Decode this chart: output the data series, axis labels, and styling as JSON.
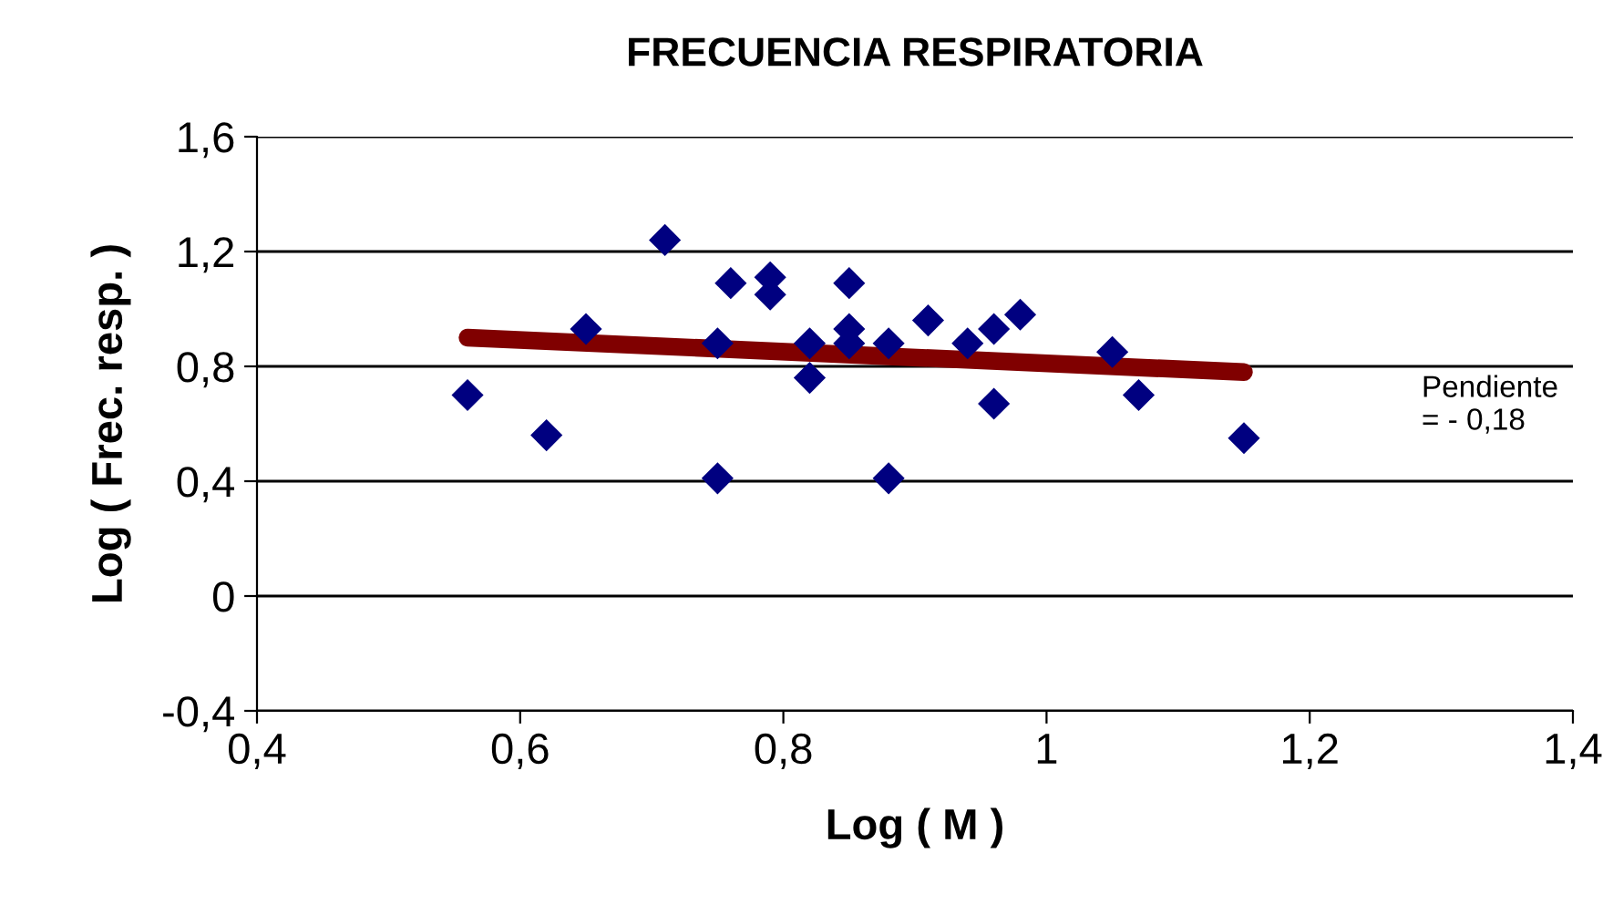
{
  "chart_data": {
    "type": "scatter",
    "title": "FRECUENCIA RESPIRATORIA",
    "xlabel": "Log ( M )",
    "ylabel": "Log ( Frec. resp. )",
    "xlim": [
      0.4,
      1.4
    ],
    "ylim": [
      -0.4,
      1.6
    ],
    "xticks": [
      {
        "value": 0.4,
        "label": "0,4"
      },
      {
        "value": 0.6,
        "label": "0,6"
      },
      {
        "value": 0.8,
        "label": "0,8"
      },
      {
        "value": 1,
        "label": "1"
      },
      {
        "value": 1.2,
        "label": "1,2"
      },
      {
        "value": 1.4,
        "label": "1,4"
      }
    ],
    "yticks": [
      {
        "value": -0.4,
        "label": "-0,4"
      },
      {
        "value": 0,
        "label": "0"
      },
      {
        "value": 0.4,
        "label": "0,4"
      },
      {
        "value": 0.8,
        "label": "0,8"
      },
      {
        "value": 1.2,
        "label": "1,2"
      },
      {
        "value": 1.6,
        "label": "1,6"
      }
    ],
    "grid": "y",
    "annotations": [
      "Pendiente\n= - 0,18"
    ],
    "series": [
      {
        "marker": "diamond",
        "color": "#000080",
        "x": [
          0.56,
          0.62,
          0.65,
          0.71,
          0.75,
          0.75,
          0.76,
          0.79,
          0.79,
          0.82,
          0.82,
          0.85,
          0.85,
          0.85,
          0.88,
          0.88,
          0.91,
          0.94,
          0.96,
          0.96,
          0.98,
          1.05,
          1.07,
          1.15
        ],
        "values": [
          0.7,
          0.56,
          0.93,
          1.24,
          0.88,
          0.41,
          1.09,
          1.11,
          1.05,
          0.88,
          0.76,
          1.09,
          0.93,
          0.88,
          0.41,
          0.88,
          0.96,
          0.88,
          0.93,
          0.67,
          0.98,
          0.85,
          0.7,
          0.55
        ]
      },
      {
        "type": "line",
        "color": "#800000",
        "x": [
          0.56,
          1.15
        ],
        "values": [
          0.9,
          0.78
        ]
      }
    ]
  }
}
